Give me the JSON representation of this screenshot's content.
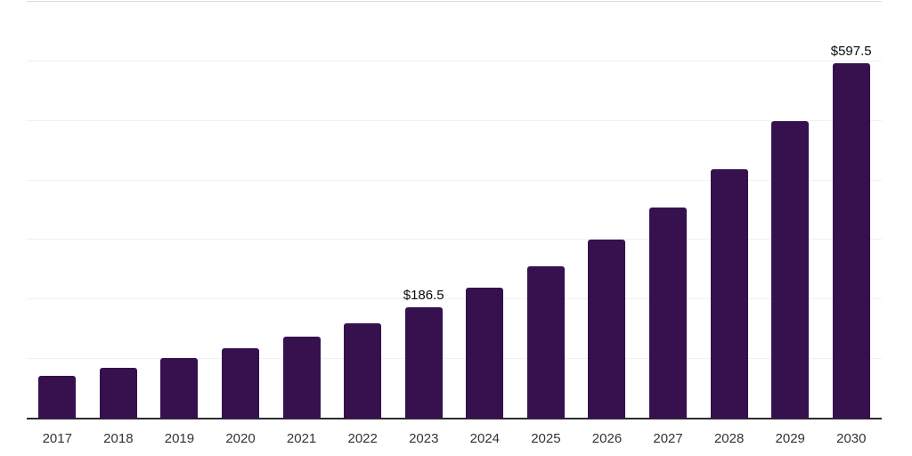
{
  "chart_data": {
    "type": "bar",
    "title": "",
    "xlabel": "",
    "ylabel": "",
    "categories": [
      "2017",
      "2018",
      "2019",
      "2020",
      "2021",
      "2022",
      "2023",
      "2024",
      "2025",
      "2026",
      "2027",
      "2028",
      "2029",
      "2030"
    ],
    "values": [
      72,
      85,
      101,
      118,
      137,
      160,
      186.5,
      220,
      256,
      300,
      354,
      419,
      500,
      597.5
    ],
    "data_labels": {
      "2023": "$186.5",
      "2030": "$597.5"
    },
    "ylim": [
      0,
      700
    ],
    "gridline_values": [
      100,
      200,
      300,
      400,
      500,
      600,
      700
    ],
    "grid": "horizontal",
    "legend": "none",
    "colors": {
      "bar": "#36114E",
      "axis_line": "#2d2d2d",
      "gridline": "#f1f1f4",
      "gridline_top": "#dcdce0",
      "tick_label": "#333333",
      "data_label": "#0a0a0a",
      "background": "#ffffff"
    }
  }
}
